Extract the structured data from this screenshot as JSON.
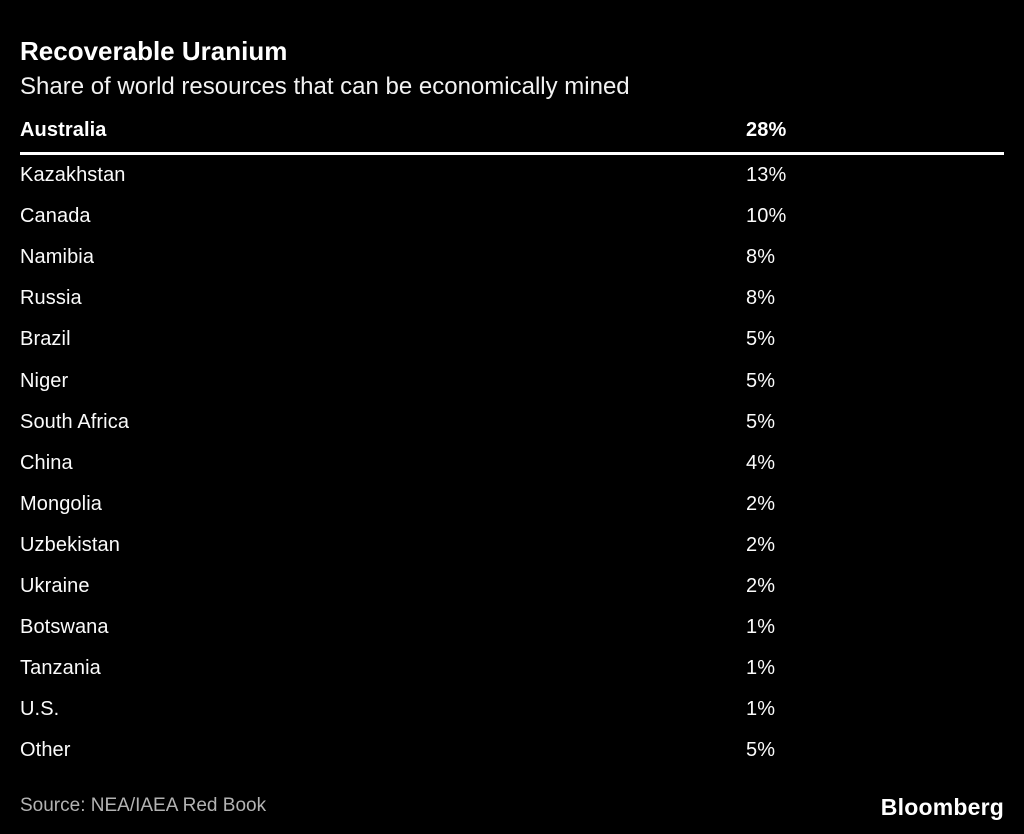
{
  "header": {
    "title": "Recoverable Uranium",
    "subtitle": "Share of world resources that can be economically mined"
  },
  "table": {
    "rows": [
      {
        "country": "Australia",
        "share": "28%"
      },
      {
        "country": "Kazakhstan",
        "share": "13%"
      },
      {
        "country": "Canada",
        "share": "10%"
      },
      {
        "country": "Namibia",
        "share": "8%"
      },
      {
        "country": "Russia",
        "share": "8%"
      },
      {
        "country": "Brazil",
        "share": "5%"
      },
      {
        "country": "Niger",
        "share": "5%"
      },
      {
        "country": "South Africa",
        "share": "5%"
      },
      {
        "country": "China",
        "share": "4%"
      },
      {
        "country": "Mongolia",
        "share": "2%"
      },
      {
        "country": "Uzbekistan",
        "share": "2%"
      },
      {
        "country": "Ukraine",
        "share": "2%"
      },
      {
        "country": "Botswana",
        "share": "1%"
      },
      {
        "country": "Tanzania",
        "share": "1%"
      },
      {
        "country": "U.S.",
        "share": "1%"
      },
      {
        "country": "Other",
        "share": "5%"
      }
    ]
  },
  "footer": {
    "source": "Source: NEA/IAEA Red Book",
    "brand": "Bloomberg"
  },
  "colors": {
    "background": "#000000",
    "text": "#ffffff",
    "muted": "#b3b3b3",
    "rule": "#ffffff"
  },
  "chart_data": {
    "type": "table",
    "title": "Recoverable Uranium",
    "subtitle": "Share of world resources that can be economically mined",
    "categories": [
      "Australia",
      "Kazakhstan",
      "Canada",
      "Namibia",
      "Russia",
      "Brazil",
      "Niger",
      "South Africa",
      "China",
      "Mongolia",
      "Uzbekistan",
      "Ukraine",
      "Botswana",
      "Tanzania",
      "U.S.",
      "Other"
    ],
    "values": [
      28,
      13,
      10,
      8,
      8,
      5,
      5,
      5,
      4,
      2,
      2,
      2,
      1,
      1,
      1,
      5
    ],
    "unit": "%",
    "legend": "none",
    "grid": "off",
    "source": "NEA/IAEA Red Book"
  }
}
